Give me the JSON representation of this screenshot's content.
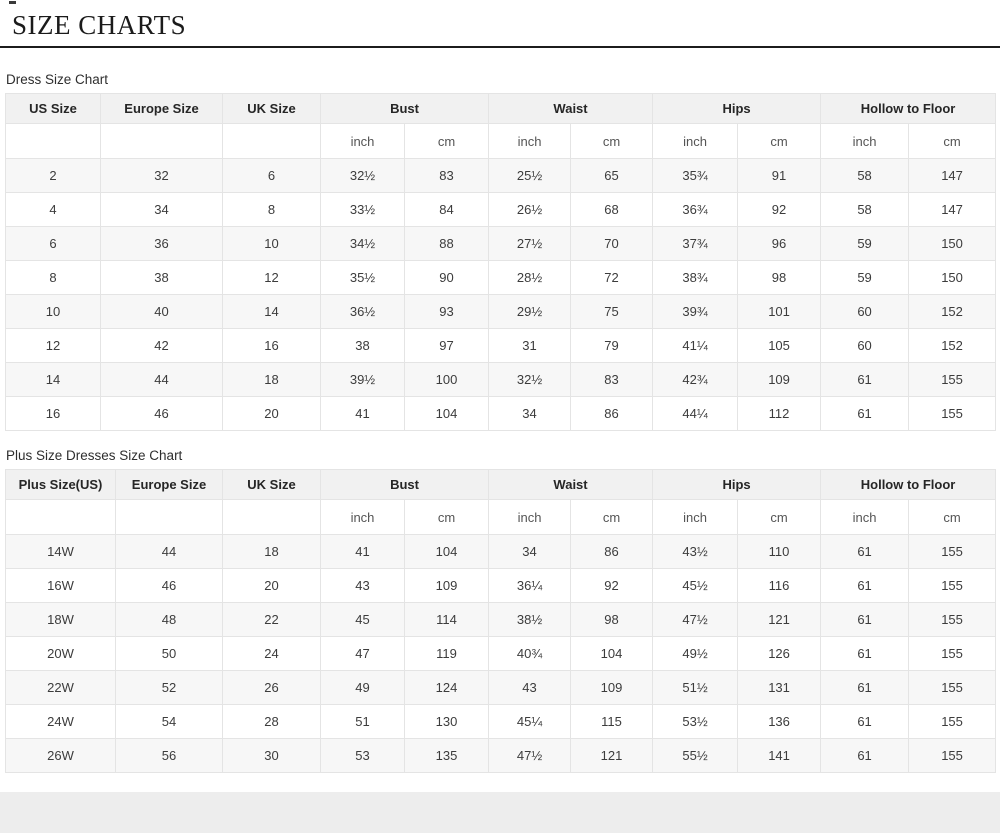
{
  "page": {
    "title": "SIZE CHARTS"
  },
  "colors": {
    "title_rule": "#1c1c1c",
    "header_bg": "#f1f1f1",
    "zebra_row_bg": "#f7f7f7",
    "grid_border": "#e4e4e4",
    "footer_bg": "#ededed"
  },
  "tables": [
    {
      "caption": "Dress Size Chart",
      "columns": [
        {
          "label": "US Size",
          "span": 1
        },
        {
          "label": "Europe Size",
          "span": 1
        },
        {
          "label": "UK Size",
          "span": 1
        },
        {
          "label": "Bust",
          "span": 2
        },
        {
          "label": "Waist",
          "span": 2
        },
        {
          "label": "Hips",
          "span": 2
        },
        {
          "label": "Hollow to Floor",
          "span": 2
        }
      ],
      "unit_row": [
        "",
        "",
        "",
        "inch",
        "cm",
        "inch",
        "cm",
        "inch",
        "cm",
        "inch",
        "cm"
      ],
      "rows": [
        [
          "2",
          "32",
          "6",
          "32½",
          "83",
          "25½",
          "65",
          "35¾",
          "91",
          "58",
          "147"
        ],
        [
          "4",
          "34",
          "8",
          "33½",
          "84",
          "26½",
          "68",
          "36¾",
          "92",
          "58",
          "147"
        ],
        [
          "6",
          "36",
          "10",
          "34½",
          "88",
          "27½",
          "70",
          "37¾",
          "96",
          "59",
          "150"
        ],
        [
          "8",
          "38",
          "12",
          "35½",
          "90",
          "28½",
          "72",
          "38¾",
          "98",
          "59",
          "150"
        ],
        [
          "10",
          "40",
          "14",
          "36½",
          "93",
          "29½",
          "75",
          "39¾",
          "101",
          "60",
          "152"
        ],
        [
          "12",
          "42",
          "16",
          "38",
          "97",
          "31",
          "79",
          "41¼",
          "105",
          "60",
          "152"
        ],
        [
          "14",
          "44",
          "18",
          "39½",
          "100",
          "32½",
          "83",
          "42¾",
          "109",
          "61",
          "155"
        ],
        [
          "16",
          "46",
          "20",
          "41",
          "104",
          "34",
          "86",
          "44¼",
          "112",
          "61",
          "155"
        ]
      ]
    },
    {
      "caption": "Plus Size Dresses Size Chart",
      "columns": [
        {
          "label": "Plus Size(US)",
          "span": 1
        },
        {
          "label": "Europe Size",
          "span": 1
        },
        {
          "label": "UK Size",
          "span": 1
        },
        {
          "label": "Bust",
          "span": 2
        },
        {
          "label": "Waist",
          "span": 2
        },
        {
          "label": "Hips",
          "span": 2
        },
        {
          "label": "Hollow to Floor",
          "span": 2
        }
      ],
      "unit_row": [
        "",
        "",
        "",
        "inch",
        "cm",
        "inch",
        "cm",
        "inch",
        "cm",
        "inch",
        "cm"
      ],
      "rows": [
        [
          "14W",
          "44",
          "18",
          "41",
          "104",
          "34",
          "86",
          "43½",
          "110",
          "61",
          "155"
        ],
        [
          "16W",
          "46",
          "20",
          "43",
          "109",
          "36¼",
          "92",
          "45½",
          "116",
          "61",
          "155"
        ],
        [
          "18W",
          "48",
          "22",
          "45",
          "114",
          "38½",
          "98",
          "47½",
          "121",
          "61",
          "155"
        ],
        [
          "20W",
          "50",
          "24",
          "47",
          "119",
          "40¾",
          "104",
          "49½",
          "126",
          "61",
          "155"
        ],
        [
          "22W",
          "52",
          "26",
          "49",
          "124",
          "43",
          "109",
          "51½",
          "131",
          "61",
          "155"
        ],
        [
          "24W",
          "54",
          "28",
          "51",
          "130",
          "45¼",
          "115",
          "53½",
          "136",
          "61",
          "155"
        ],
        [
          "26W",
          "56",
          "30",
          "53",
          "135",
          "47½",
          "121",
          "55½",
          "141",
          "61",
          "155"
        ]
      ]
    }
  ]
}
